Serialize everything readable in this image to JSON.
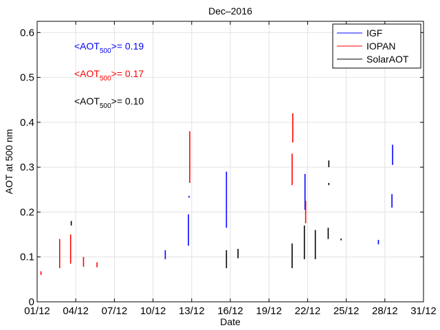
{
  "chart_data": {
    "type": "line",
    "title": "Dec–2016",
    "xlabel": "Date",
    "ylabel": "AOT at 500 nm",
    "xlim": [
      1,
      31
    ],
    "ylim": [
      0,
      0.625
    ],
    "grid": true,
    "legend_position": "top-right",
    "x_ticks": [
      1,
      4,
      7,
      10,
      13,
      16,
      19,
      22,
      25,
      28,
      31
    ],
    "x_tick_labels": [
      "01/12",
      "04/12",
      "07/12",
      "10/12",
      "13/12",
      "16/12",
      "19/12",
      "22/12",
      "25/12",
      "28/12",
      "31/12"
    ],
    "y_ticks": [
      0,
      0.1,
      0.2,
      0.3,
      0.4,
      0.5,
      0.6
    ],
    "y_tick_labels": [
      "0",
      "0.1",
      "0.2",
      "0.3",
      "0.4",
      "0.5",
      "0.6"
    ],
    "series": [
      {
        "name": "IGF",
        "color": "#0000ff",
        "segments": [
          {
            "x": 10.95,
            "ymin": 0.095,
            "ymax": 0.115
          },
          {
            "x": 12.75,
            "ymin": 0.125,
            "ymax": 0.195
          },
          {
            "x": 12.8,
            "ymin": 0.232,
            "ymax": 0.236
          },
          {
            "x": 15.7,
            "ymin": 0.165,
            "ymax": 0.29
          },
          {
            "x": 21.8,
            "ymin": 0.205,
            "ymax": 0.285
          },
          {
            "x": 27.5,
            "ymin": 0.128,
            "ymax": 0.138
          },
          {
            "x": 28.55,
            "ymin": 0.21,
            "ymax": 0.24
          },
          {
            "x": 28.6,
            "ymin": 0.305,
            "ymax": 0.35
          }
        ]
      },
      {
        "name": "IOPAN",
        "color": "#ff0000",
        "segments": [
          {
            "x": 1.3,
            "ymin": 0.06,
            "ymax": 0.068
          },
          {
            "x": 2.75,
            "ymin": 0.075,
            "ymax": 0.14
          },
          {
            "x": 3.6,
            "ymin": 0.085,
            "ymax": 0.15
          },
          {
            "x": 4.6,
            "ymin": 0.078,
            "ymax": 0.1
          },
          {
            "x": 5.65,
            "ymin": 0.077,
            "ymax": 0.088
          },
          {
            "x": 12.85,
            "ymin": 0.265,
            "ymax": 0.38
          },
          {
            "x": 20.8,
            "ymin": 0.26,
            "ymax": 0.33
          },
          {
            "x": 20.85,
            "ymin": 0.355,
            "ymax": 0.42
          },
          {
            "x": 21.85,
            "ymin": 0.175,
            "ymax": 0.225
          }
        ]
      },
      {
        "name": "SolarAOT",
        "color": "#000000",
        "segments": [
          {
            "x": 3.65,
            "ymin": 0.17,
            "ymax": 0.18
          },
          {
            "x": 15.7,
            "ymin": 0.075,
            "ymax": 0.115
          },
          {
            "x": 16.6,
            "ymin": 0.097,
            "ymax": 0.118
          },
          {
            "x": 20.8,
            "ymin": 0.075,
            "ymax": 0.13
          },
          {
            "x": 21.75,
            "ymin": 0.095,
            "ymax": 0.17
          },
          {
            "x": 22.6,
            "ymin": 0.095,
            "ymax": 0.16
          },
          {
            "x": 23.6,
            "ymin": 0.14,
            "ymax": 0.165
          },
          {
            "x": 23.65,
            "ymin": 0.26,
            "ymax": 0.265
          },
          {
            "x": 23.65,
            "ymin": 0.3,
            "ymax": 0.315
          },
          {
            "x": 24.6,
            "ymin": 0.137,
            "ymax": 0.141
          }
        ]
      }
    ],
    "annotations": [
      {
        "prefix": "<AOT",
        "sub": "500",
        "suffix": ">= 0.19",
        "color": "#0000ff"
      },
      {
        "prefix": "<AOT",
        "sub": "500",
        "suffix": ">= 0.17",
        "color": "#ff0000"
      },
      {
        "prefix": "<AOT",
        "sub": "500",
        "suffix": ">= 0.10",
        "color": "#000000"
      }
    ]
  }
}
